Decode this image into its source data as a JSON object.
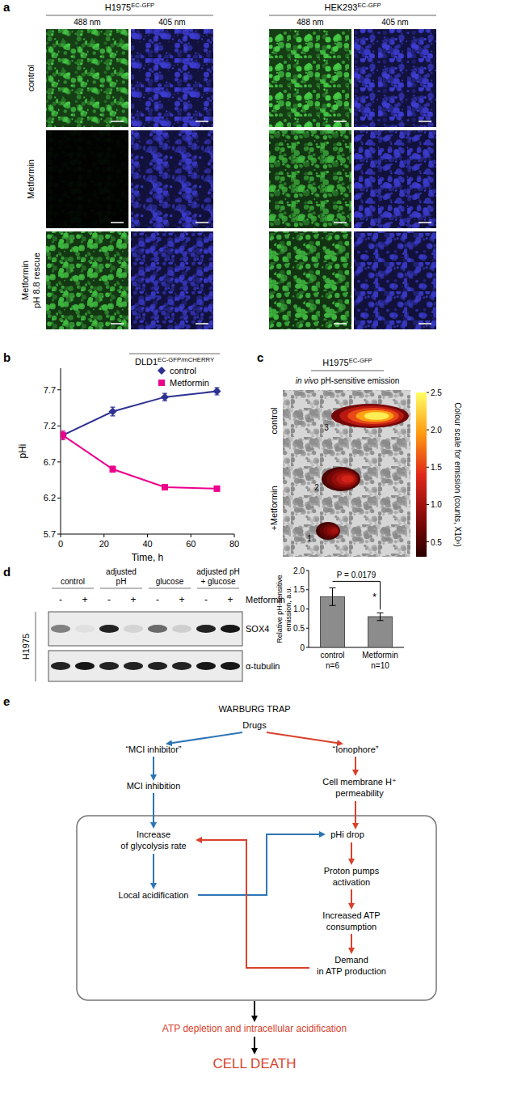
{
  "panel_labels": [
    "a",
    "b",
    "c",
    "d",
    "e"
  ],
  "panel_a": {
    "groups": [
      {
        "name": "H1975",
        "superscript": "EC-GFP"
      },
      {
        "name": "HEK293",
        "superscript": "EC-GFP"
      }
    ],
    "channels": [
      {
        "label": "488 nm",
        "color": "#46cc46"
      },
      {
        "label": "405 nm",
        "color": "#3c3cd2"
      }
    ],
    "rows": [
      {
        "label": "control",
        "intensity": [
          1,
          1,
          1,
          1
        ]
      },
      {
        "label": "Metformin",
        "intensity": [
          0.04,
          0.95,
          0.85,
          0.95
        ]
      },
      {
        "label": "Metformin\npH 8.8 rescue",
        "intensity": [
          0.9,
          0.95,
          0.85,
          0.95
        ]
      }
    ]
  },
  "chart_data": [
    {
      "type": "line",
      "title": "DLD1",
      "title_superscript": "EC-GFP/mCHERRY",
      "x": [
        1,
        24,
        48,
        72
      ],
      "xlim": [
        0,
        80
      ],
      "xticks": [
        0,
        20,
        40,
        60,
        80
      ],
      "ylim": [
        5.7,
        8.0
      ],
      "yticks": [
        5.7,
        6.2,
        6.7,
        7.2,
        7.7
      ],
      "x_label": "Time, h",
      "y_label": "pHi",
      "legend": "top",
      "grid": false,
      "series": [
        {
          "name": "control",
          "color": "#2e3192",
          "marker": "diamond",
          "values": [
            7.07,
            7.4,
            7.6,
            7.68
          ],
          "errors": [
            0.06,
            0.06,
            0.05,
            0.05
          ]
        },
        {
          "name": "Metformin",
          "color": "#ec008c",
          "marker": "square",
          "values": [
            7.07,
            6.6,
            6.35,
            6.33
          ],
          "errors": [
            0.06,
            0.04,
            0.03,
            0.03
          ]
        }
      ]
    },
    {
      "type": "bar",
      "categories": [
        "control",
        "Metformin"
      ],
      "category_notes": [
        "n=6",
        "n=10"
      ],
      "values": [
        1.32,
        0.8
      ],
      "errors": [
        0.23,
        0.1
      ],
      "color": "#8c8c8c",
      "ylim": [
        0,
        2
      ],
      "yticks": [
        0,
        0.5,
        {
          "value": 1,
          "label": "1.0"
        },
        1.5,
        {
          "value": 2,
          "label": "2.0"
        }
      ],
      "y_label": "Relative pH-sensitive\nemission, a.u.",
      "annotations": [
        {
          "text": "P = 0.0179"
        },
        {
          "text": "*"
        }
      ]
    }
  ],
  "panel_c_image": {
    "group": {
      "name": "H1975",
      "superscript": "EC-GFP"
    },
    "subtitle_italic": "in vivo",
    "subtitle": "pH-sensitive emission",
    "row_labels": [
      "control",
      "+Metformin"
    ],
    "subjects": [
      {
        "label": "3",
        "intensity": 2.4
      },
      {
        "label": "2",
        "intensity": 1.3
      },
      {
        "label": "1",
        "intensity": 1.0
      }
    ],
    "colorbar": {
      "range": [
        0.3,
        2.5
      ],
      "ticks": [
        0.5,
        {
          "value": 1,
          "label": "1.0"
        },
        1.5,
        {
          "value": 2,
          "label": "2.0"
        },
        2.5
      ],
      "label": "Colour scale for emission (counts, X10⁸)",
      "colors": [
        "#2a0000",
        "#8b0a0a",
        "#e0281a",
        "#ff9a10",
        "#ffff66"
      ]
    }
  },
  "panel_d": {
    "groups": [
      "control",
      "adjusted\npH",
      "glucose",
      "adjusted pH\n+ glucose"
    ],
    "treatment_label": "Metformin",
    "treatment_signs": [
      "-",
      "+"
    ],
    "cell_line": "H1975",
    "bands": [
      {
        "label": "SOX4",
        "intensity": [
          0.45,
          0.05,
          0.85,
          0.1,
          0.55,
          0.12,
          0.85,
          0.9
        ]
      },
      {
        "label": "α-tubulin",
        "intensity": [
          0.85,
          0.9,
          0.85,
          0.85,
          0.85,
          0.85,
          0.9,
          0.9
        ]
      }
    ]
  },
  "panel_e": {
    "nodes": [
      {
        "label": "WARBURG TRAP"
      },
      {
        "label": "Drugs"
      },
      {
        "label": "“MCI inhibitor”"
      },
      {
        "label": "“Ionophore”"
      },
      {
        "label": "MCI inhibition"
      },
      {
        "label": "Cell membrane H⁺\npermeability"
      },
      {
        "label": "Increase\nof glycolysis rate"
      },
      {
        "label": "pHi drop"
      },
      {
        "label": "Local acidification"
      },
      {
        "label": "Proton pumps\nactivation"
      },
      {
        "label": "Increased ATP\nconsumption"
      },
      {
        "label": "Demand\nin ATP production"
      },
      {
        "label": "ATP depletion and intracellular acidification",
        "color": "#d9412b"
      },
      {
        "label": "CELL DEATH",
        "color": "#d9412b"
      }
    ],
    "edges": [
      {
        "from": 1,
        "to": 2,
        "color": "#2e75b6"
      },
      {
        "from": 1,
        "to": 3,
        "color": "#d9412b"
      },
      {
        "from": 2,
        "to": 4,
        "color": "#2e75b6"
      },
      {
        "from": 3,
        "to": 5,
        "color": "#d9412b"
      },
      {
        "from": 4,
        "to": 6,
        "color": "#2e75b6"
      },
      {
        "from": 5,
        "to": 7,
        "color": "#d9412b"
      },
      {
        "from": 6,
        "to": 8,
        "color": "#2e75b6"
      },
      {
        "from": 8,
        "to": 7,
        "color": "#2e75b6"
      },
      {
        "from": 7,
        "to": 9,
        "color": "#d9412b"
      },
      {
        "from": 9,
        "to": 10,
        "color": "#d9412b"
      },
      {
        "from": 10,
        "to": 11,
        "color": "#d9412b"
      },
      {
        "from": 11,
        "to": 6,
        "color": "#d9412b"
      },
      {
        "from": 12,
        "to": 13,
        "color": "#000000"
      }
    ]
  }
}
